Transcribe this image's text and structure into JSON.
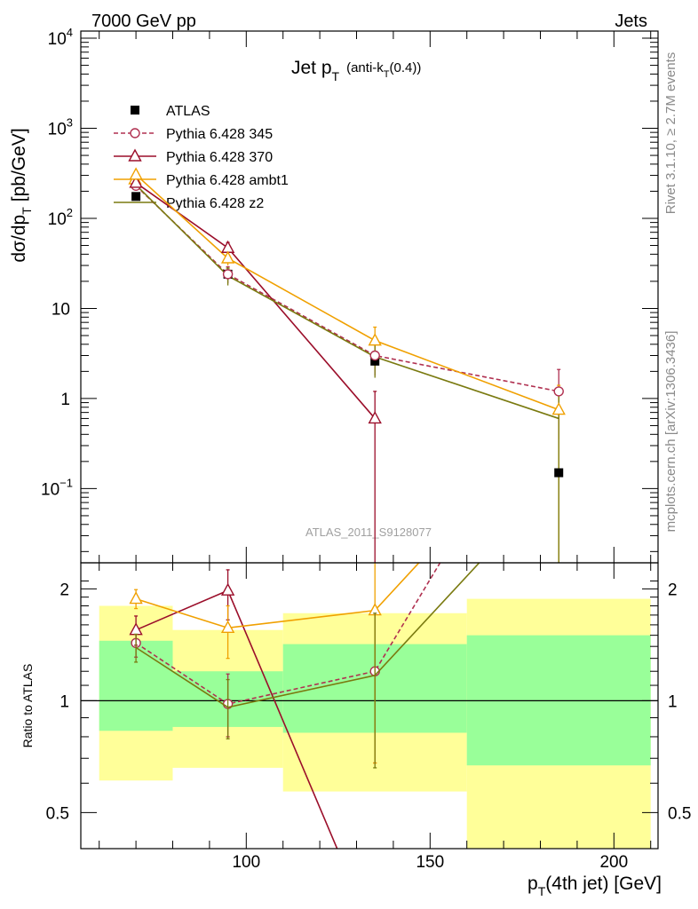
{
  "header": {
    "left": "7000 GeV pp",
    "right": "Jets"
  },
  "side_labels": {
    "rivet": "Rivet 3.1.10, ≥ 2.7M events",
    "mcplots": "mcplots.cern.ch [arXiv:1306.3436]"
  },
  "chart_data": [
    {
      "type": "line",
      "title_main": "Jet p",
      "title_sub": "T",
      "title_paren": "(anti-k",
      "title_paren_sub": "T",
      "title_paren_end": "(0.4))",
      "ylabel": "dσ/dp",
      "ylabel_sub": "T",
      "ylabel_unit": "[pb/GeV]",
      "yscale": "log",
      "ylim": [
        0.015,
        12000
      ],
      "xlim": [
        55,
        212
      ],
      "grid": false,
      "legend_position": "top-left",
      "watermark": "ATLAS_2011_S9128077",
      "y_tick_labels": [
        {
          "v": 10000,
          "base": "10",
          "exp": "4"
        },
        {
          "v": 1000,
          "base": "10",
          "exp": "3"
        },
        {
          "v": 100,
          "base": "10",
          "exp": "2"
        },
        {
          "v": 10,
          "base": "10",
          "exp": ""
        },
        {
          "v": 1,
          "base": "1",
          "exp": ""
        },
        {
          "v": 0.1,
          "base": "10",
          "exp": "−1"
        }
      ],
      "data": {
        "name": "ATLAS",
        "x": [
          70,
          95,
          135,
          185
        ],
        "xerr": [
          [
            60,
            80
          ],
          [
            80,
            110
          ],
          [
            110,
            160
          ],
          [
            160,
            210
          ]
        ],
        "y": [
          175,
          24,
          2.6,
          0.15
        ]
      },
      "series": [
        {
          "name": "Pythia 6.428 345",
          "color": "#b03050",
          "dashed": true,
          "marker": "circle",
          "x": [
            70,
            95,
            135,
            185
          ],
          "y": [
            230,
            24,
            3.0,
            1.2
          ],
          "yerr": [
            [
              205,
              255
            ],
            [
              19,
              29
            ],
            [
              1.8,
              4.2
            ],
            [
              0.35,
              2.1
            ]
          ]
        },
        {
          "name": "Pythia 6.428 370",
          "color": "#9b0e2a",
          "dashed": false,
          "marker": "triangle",
          "x": [
            70,
            95,
            135,
            185
          ],
          "y": [
            248,
            47,
            0.6,
            null
          ],
          "yerr": [
            [
              225,
              270
            ],
            [
              40,
              54
            ],
            [
              0.001,
              1.2
            ],
            null
          ]
        },
        {
          "name": "Pythia 6.428 ambt1",
          "color": "#f0a000",
          "dashed": false,
          "marker": "triangle",
          "x": [
            70,
            95,
            135,
            185
          ],
          "y": [
            305,
            36,
            4.4,
            0.75
          ],
          "yerr": [
            [
              280,
              330
            ],
            [
              30,
              42
            ],
            [
              2.6,
              6.2
            ],
            [
              0.001,
              1.4
            ]
          ]
        },
        {
          "name": "Pythia 6.428 z2",
          "color": "#7a7a10",
          "dashed": false,
          "marker": "none",
          "x": [
            70,
            95,
            135,
            185
          ],
          "y": [
            235,
            23,
            2.9,
            0.6
          ],
          "yerr": [
            [
              215,
              255
            ],
            [
              18,
              28
            ],
            [
              1.7,
              4.1
            ],
            [
              0.001,
              1.2
            ]
          ]
        }
      ]
    },
    {
      "type": "line",
      "ylabel": "Ratio to ATLAS",
      "xlabel_pre": "p",
      "xlabel_sub": "T",
      "xlabel_post": "(4th jet) [GeV]",
      "yscale": "log",
      "ylim": [
        0.4,
        2.35
      ],
      "xlim": [
        55,
        212
      ],
      "x_ticks": [
        100,
        150,
        200
      ],
      "y_ticks": [
        0.5,
        1,
        2
      ],
      "y_tick_labels": [
        "0.5",
        "1",
        "2"
      ],
      "bands": [
        {
          "x": [
            60,
            80
          ],
          "outer": [
            0.61,
            1.8
          ],
          "inner": [
            0.83,
            1.45
          ]
        },
        {
          "x": [
            80,
            110
          ],
          "outer": [
            0.66,
            1.55
          ],
          "inner": [
            0.85,
            1.2
          ]
        },
        {
          "x": [
            110,
            160
          ],
          "outer": [
            0.57,
            1.72
          ],
          "inner": [
            0.82,
            1.42
          ]
        },
        {
          "x": [
            160,
            210
          ],
          "outer": [
            0.4,
            1.88
          ],
          "inner": [
            0.67,
            1.5
          ]
        }
      ],
      "band_colors": {
        "outer": "#ffff99",
        "inner": "#99ff99"
      },
      "series": [
        {
          "name": "Pythia 6.428 345",
          "x": [
            70,
            95,
            135,
            185
          ],
          "y": [
            1.43,
            0.98,
            1.2,
            8.0
          ],
          "yerr": [
            [
              1.31,
              1.55
            ],
            [
              0.8,
              1.18
            ],
            [
              0.68,
              1.75
            ],
            null
          ]
        },
        {
          "name": "Pythia 6.428 370",
          "x": [
            70,
            95,
            135
          ],
          "y": [
            1.55,
            1.98,
            0.23
          ],
          "yerr": [
            [
              1.41,
              1.69
            ],
            [
              1.65,
              2.25
            ],
            null
          ]
        },
        {
          "name": "Pythia 6.428 ambt1",
          "x": [
            70,
            95,
            135,
            185
          ],
          "y": [
            1.88,
            1.57,
            1.75,
            6.0
          ],
          "yerr": [
            [
              1.77,
              1.99
            ],
            [
              1.3,
              1.8
            ],
            [
              0.68,
              2.4
            ],
            null
          ]
        },
        {
          "name": "Pythia 6.428 z2",
          "x": [
            70,
            95,
            135,
            185
          ],
          "y": [
            1.39,
            0.96,
            1.17,
            4.0
          ],
          "yerr": [
            [
              1.27,
              1.51
            ],
            [
              0.79,
              1.14
            ],
            [
              0.66,
              1.72
            ],
            null
          ]
        }
      ]
    }
  ]
}
